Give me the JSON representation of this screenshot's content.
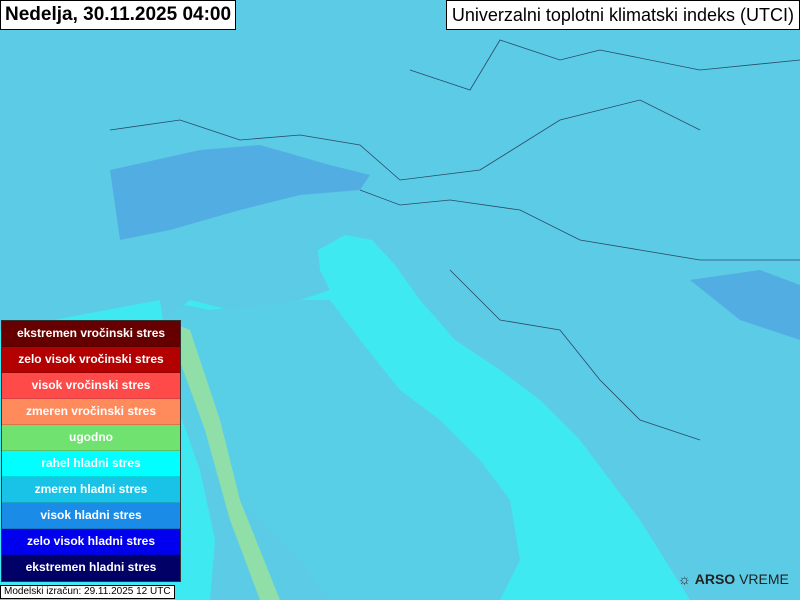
{
  "header": {
    "date": "Nedelja, 30.11.2025 04:00",
    "title": "Univerzalni toplotni klimatski indeks (UTCI)"
  },
  "legend": [
    {
      "label": "ekstremen vročinski stres",
      "color": "#660000"
    },
    {
      "label": "zelo visok vročinski stres",
      "color": "#b30000"
    },
    {
      "label": "visok vročinski stres",
      "color": "#ff4a4a"
    },
    {
      "label": "zmeren vročinski stres",
      "color": "#ff8a5c"
    },
    {
      "label": "ugodno",
      "color": "#6fe26f"
    },
    {
      "label": "rahel hladni stres",
      "color": "#00ffff"
    },
    {
      "label": "zmeren hladni stres",
      "color": "#19c3e8"
    },
    {
      "label": "visok hladni stres",
      "color": "#1a8ce8"
    },
    {
      "label": "zelo visok hladni stres",
      "color": "#0000ee"
    },
    {
      "label": "ekstremen hladni stres",
      "color": "#000066"
    }
  ],
  "footer": {
    "model": "Modelski izračun: 29.11.2025 12 UTC",
    "logo_bold": "ARSO",
    "logo_rest": " VREME"
  },
  "colors": {
    "sea": "#3fe9f2",
    "land": "#5ccbe6",
    "mountains": "#4a95e0",
    "comfort": "#9ee39a"
  }
}
